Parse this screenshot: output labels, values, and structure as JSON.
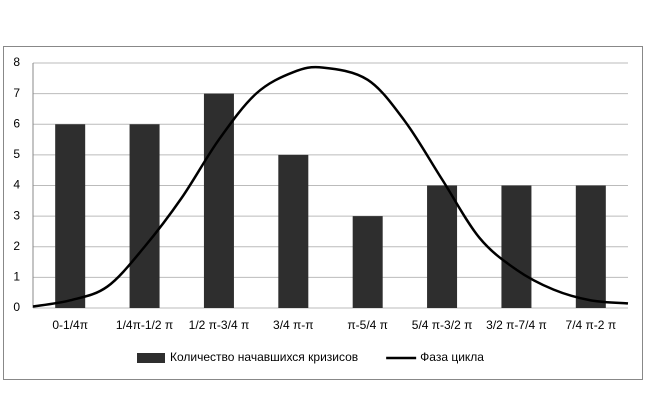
{
  "chart_data": {
    "type": "bar",
    "categories": [
      "0-1/4π",
      "1/4π-1/2 π",
      "1/2 π-3/4 π",
      "3/4 π-π",
      "π-5/4 π",
      "5/4 π-3/2 π",
      "3/2 π-7/4 π",
      "7/4 π-2 π"
    ],
    "series": [
      {
        "name": "Количество начавшихся кризисов",
        "color": "#2e2e2e",
        "values": [
          6,
          6,
          7,
          5,
          3,
          4,
          4,
          4
        ]
      },
      {
        "name": "Фаза цикла",
        "type": "line",
        "color": "#000000",
        "x": [
          0,
          0.5,
          1,
          1.5,
          2,
          2.5,
          3,
          3.5,
          3.9,
          4.5,
          5,
          5.5,
          6,
          6.5,
          7,
          7.5,
          8
        ],
        "values": [
          0.05,
          0.25,
          0.7,
          2,
          3.6,
          5.5,
          7,
          7.7,
          7.85,
          7.45,
          6.1,
          4.2,
          2.3,
          1.25,
          0.6,
          0.25,
          0.15
        ]
      }
    ],
    "xlim": [
      0,
      8
    ],
    "ylim": [
      0,
      8
    ],
    "yticks": [
      0,
      1,
      2,
      3,
      4,
      5,
      6,
      7,
      8
    ],
    "grid": true,
    "legend": "bottom"
  }
}
